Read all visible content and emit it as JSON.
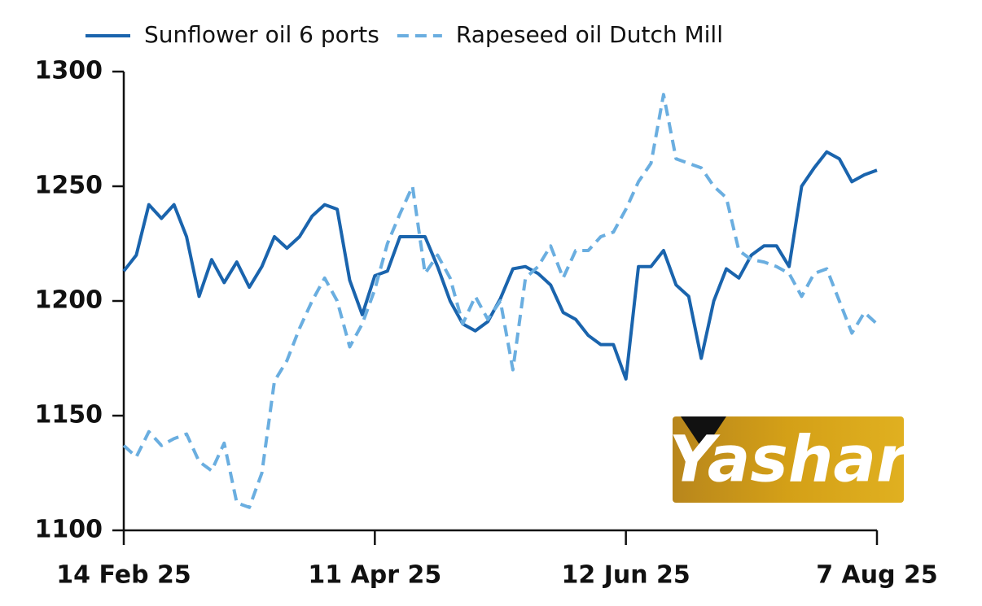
{
  "chart_data": {
    "type": "line",
    "categories": [
      "14 Feb 25",
      null,
      null,
      null,
      null,
      null,
      null,
      null,
      null,
      null,
      null,
      null,
      null,
      null,
      null,
      null,
      null,
      null,
      null,
      null,
      "11 Apr 25",
      null,
      null,
      null,
      null,
      null,
      null,
      null,
      null,
      null,
      null,
      null,
      null,
      null,
      null,
      null,
      null,
      null,
      null,
      null,
      "12 Jun 25",
      null,
      null,
      null,
      null,
      null,
      null,
      null,
      null,
      null,
      null,
      null,
      null,
      null,
      null,
      null,
      null,
      null,
      null,
      null,
      "7 Aug 25"
    ],
    "series": [
      {
        "name": "Sunflower oil 6 ports",
        "color": "#1a64ad",
        "line_style": "solid",
        "values": [
          1213,
          1220,
          1242,
          1236,
          1242,
          1228,
          1202,
          1218,
          1208,
          1217,
          1206,
          1215,
          1228,
          1223,
          1228,
          1237,
          1242,
          1240,
          1209,
          1194,
          1211,
          1213,
          1228,
          1228,
          1228,
          1215,
          1200,
          1190,
          1187,
          1191,
          1201,
          1214,
          1215,
          1212,
          1207,
          1195,
          1192,
          1185,
          1181,
          1181,
          1166,
          1215,
          1215,
          1222,
          1207,
          1202,
          1175,
          1200,
          1214,
          1210,
          1220,
          1224,
          1224,
          1215,
          1250,
          1258,
          1265,
          1262,
          1252,
          1255,
          1257
        ]
      },
      {
        "name": "Rapeseed oil Dutch Mill",
        "color": "#6aaee0",
        "line_style": "dashed",
        "values": [
          1137,
          1132,
          1143,
          1137,
          1140,
          1142,
          1130,
          1126,
          1138,
          1112,
          1110,
          1125,
          1165,
          1174,
          1188,
          1200,
          1210,
          1200,
          1180,
          1190,
          1205,
          1225,
          1238,
          1250,
          1212,
          1220,
          1210,
          1190,
          1202,
          1192,
          1200,
          1170,
          1210,
          1215,
          1224,
          1210,
          1222,
          1222,
          1228,
          1230,
          1240,
          1252,
          1260,
          1290,
          1262,
          1260,
          1258,
          1250,
          1245,
          1222,
          1218,
          1217,
          1215,
          1212,
          1202,
          1212,
          1214,
          1200,
          1186,
          1195,
          1190
        ]
      }
    ],
    "ylim": [
      1100,
      1300
    ],
    "yticks": [
      1100,
      1150,
      1200,
      1250,
      1300
    ],
    "grid": false,
    "legend": "top",
    "logo": "Yashar"
  }
}
